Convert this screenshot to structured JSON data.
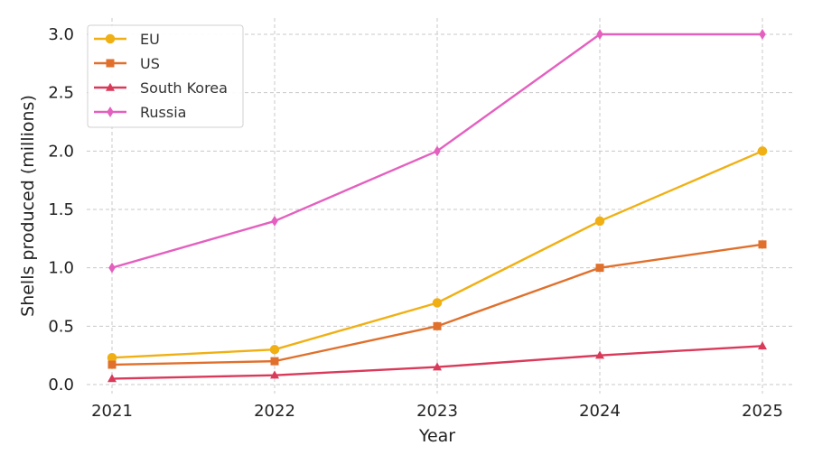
{
  "chart_data": {
    "type": "line",
    "title": "",
    "xlabel": "Year",
    "ylabel": "Shells produced (millions)",
    "x": [
      "2021",
      "2022",
      "2023",
      "2024",
      "2025"
    ],
    "ylim": [
      0,
      3.0
    ],
    "yticks": [
      "0.0",
      "0.5",
      "1.0",
      "1.5",
      "2.0",
      "2.5",
      "3.0"
    ],
    "grid": true,
    "legend_position": "top-left",
    "series": [
      {
        "name": "EU",
        "values": [
          0.23,
          0.3,
          0.7,
          1.4,
          2.0
        ],
        "color": "#f0b014",
        "marker": "circle"
      },
      {
        "name": "US",
        "values": [
          0.17,
          0.2,
          0.5,
          1.0,
          1.2
        ],
        "color": "#e0702c",
        "marker": "square"
      },
      {
        "name": "South Korea",
        "values": [
          0.05,
          0.08,
          0.15,
          0.25,
          0.33
        ],
        "color": "#d93a5a",
        "marker": "triangle"
      },
      {
        "name": "Russia",
        "values": [
          1.0,
          1.4,
          2.0,
          3.0,
          3.0
        ],
        "color": "#e460bf",
        "marker": "diamond"
      }
    ]
  }
}
